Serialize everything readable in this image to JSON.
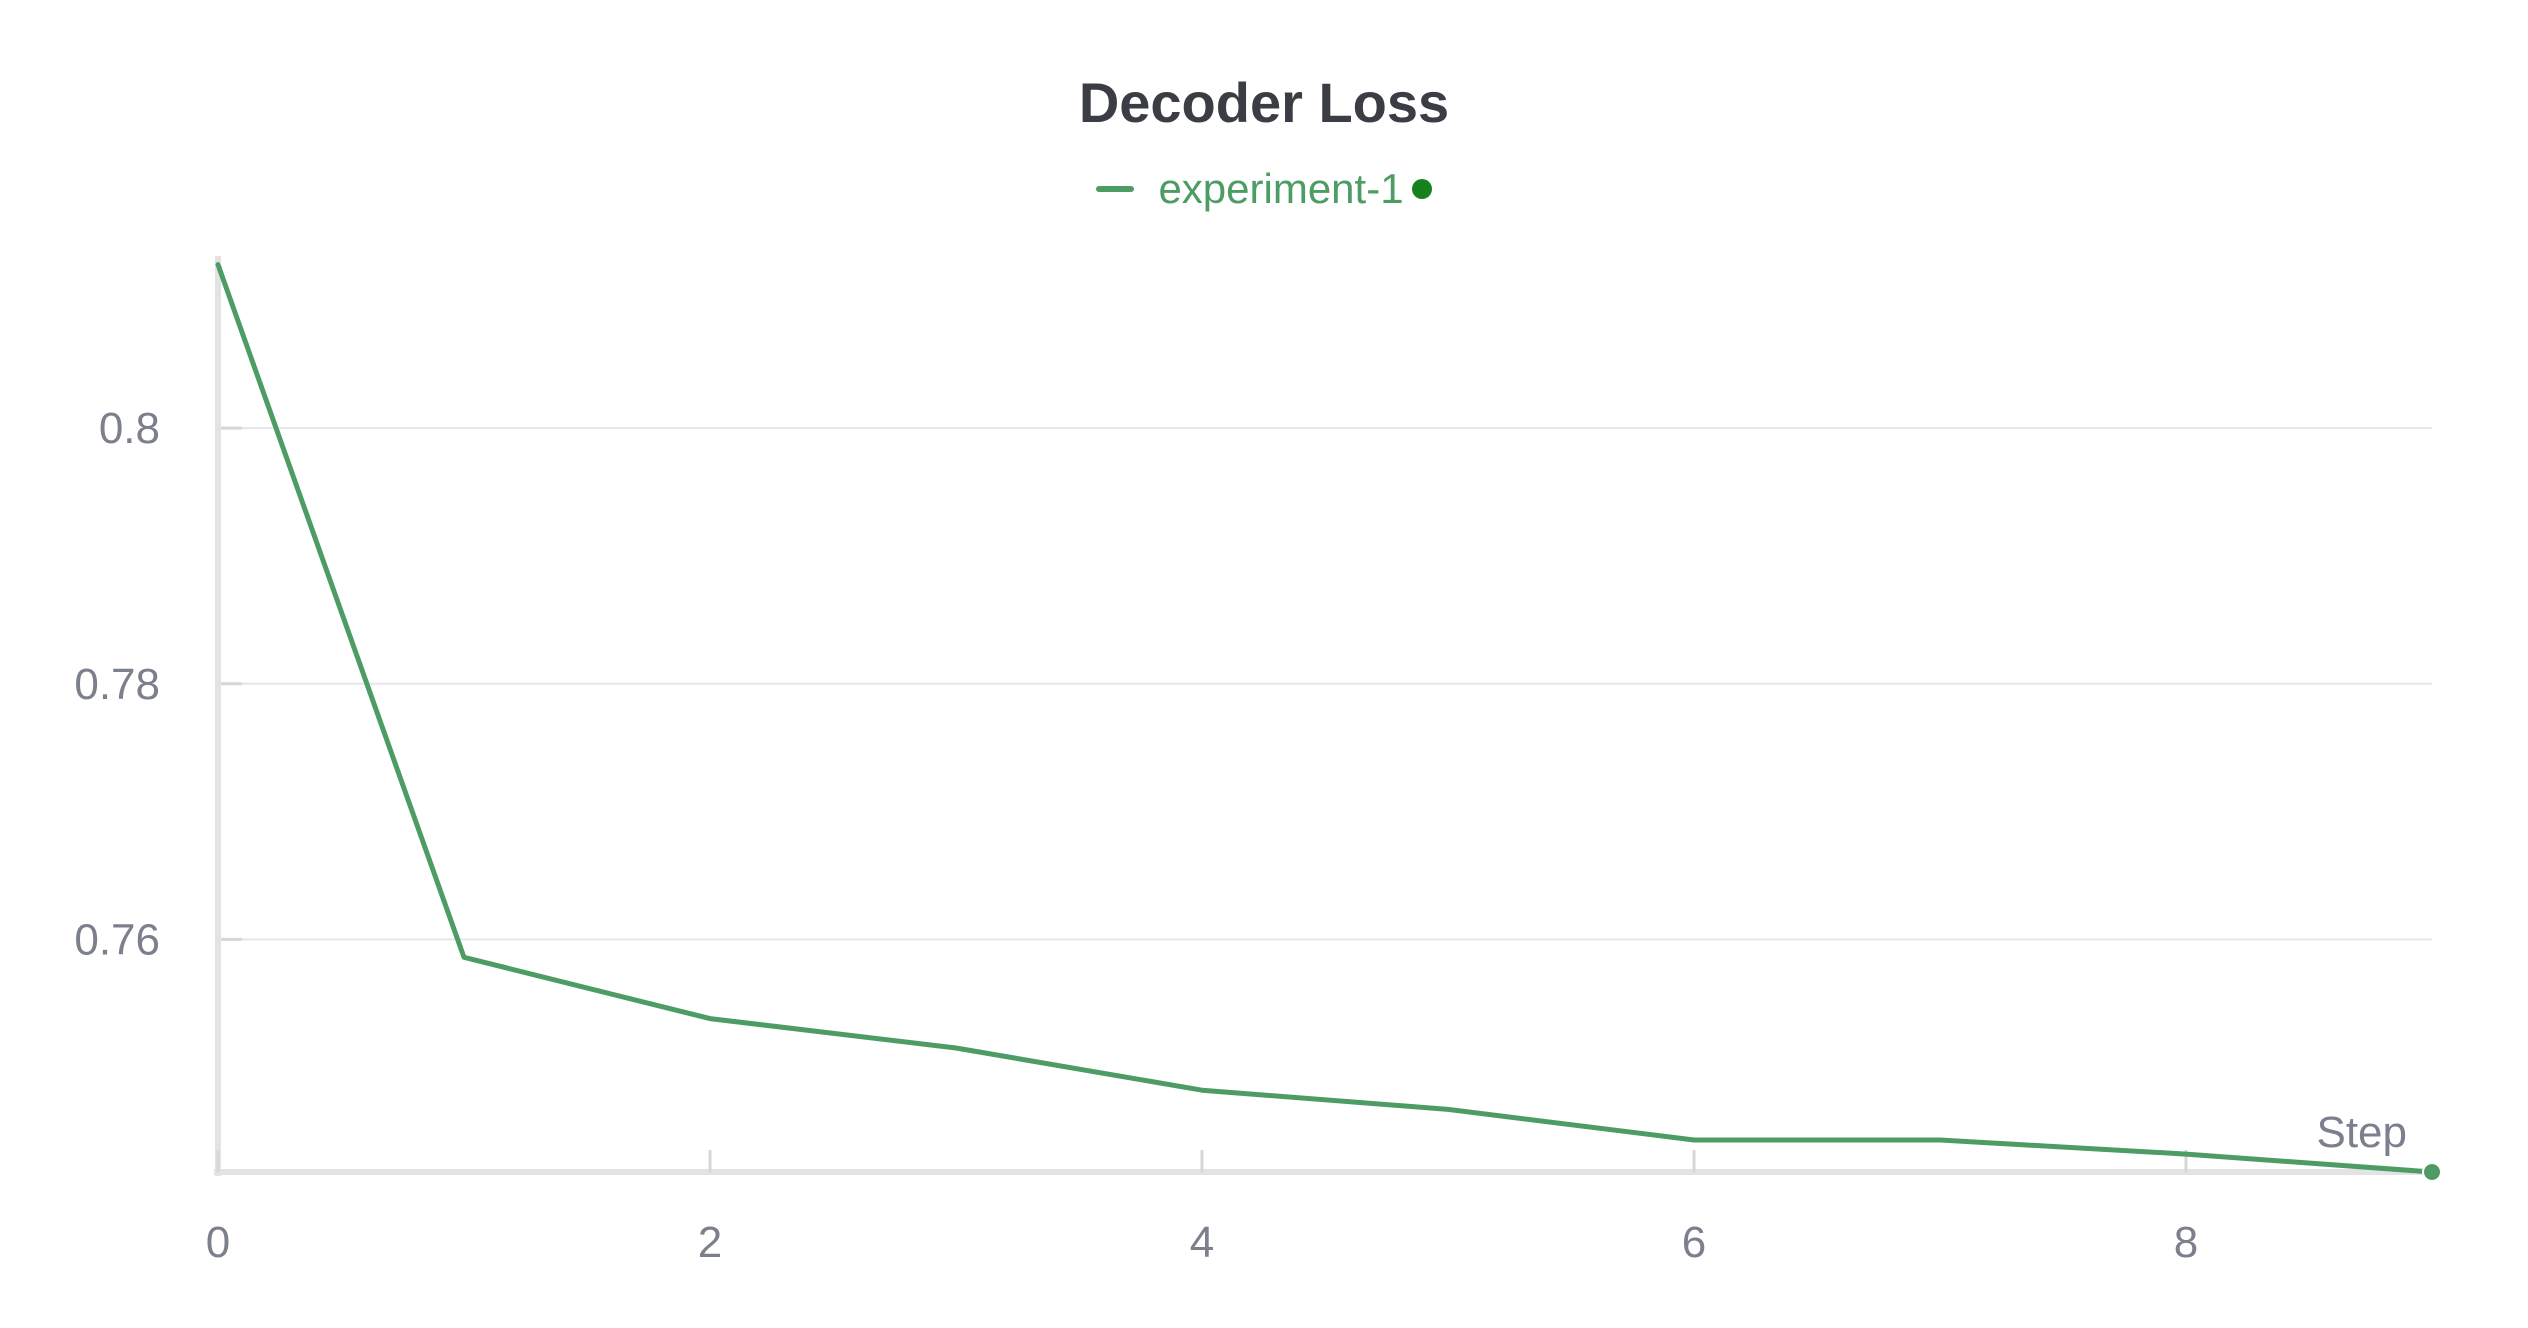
{
  "chart_data": {
    "type": "line",
    "title": "Decoder Loss",
    "xlabel": "Step",
    "ylabel": "",
    "xlim": [
      0,
      9
    ],
    "ylim": [
      0.7418,
      0.813
    ],
    "x_ticks": [
      "0",
      "2",
      "4",
      "6",
      "8"
    ],
    "y_ticks": [
      "0.8",
      "0.78",
      "0.76"
    ],
    "grid": true,
    "legend_position": "top-center",
    "series": [
      {
        "name": "experiment-1",
        "color": "#4c9c64",
        "x": [
          0,
          1,
          2,
          3,
          4,
          5,
          6,
          7,
          8,
          9
        ],
        "y": [
          0.8128,
          0.7586,
          0.7538,
          0.7515,
          0.7482,
          0.7467,
          0.7443,
          0.7443,
          0.7432,
          0.7418
        ]
      }
    ]
  },
  "legend": {
    "dot_color": "#17801f"
  }
}
